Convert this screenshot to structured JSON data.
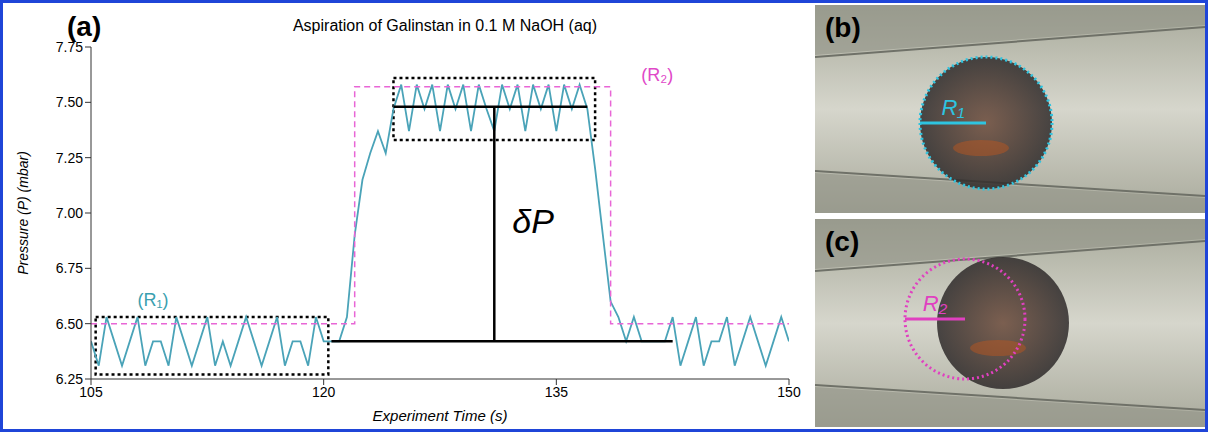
{
  "chart_data": {
    "type": "line",
    "panel_label": "(a)",
    "title": "Aspiration of Galinstan in 0.1 M NaOH (aq)",
    "x_label": "Experiment Time (s)",
    "y_label": "Pressure (P) (mbar)",
    "xlim": [
      105,
      150
    ],
    "xticks": [
      105,
      120,
      135,
      150
    ],
    "ylim": [
      6.25,
      7.75
    ],
    "yticks": [
      6.25,
      {
        "value": 6.5,
        "label": "6.50"
      },
      6.75,
      {
        "value": 7,
        "label": "7.00"
      },
      7.25,
      {
        "value": 7.5,
        "label": "7.50"
      },
      7.75
    ],
    "grid": false,
    "series": [
      {
        "color": "#4aa3b8",
        "line_style": "solid",
        "x": [
          105,
          105.5,
          106,
          106.5,
          107,
          107.5,
          108,
          108.5,
          109,
          109.5,
          110,
          110.5,
          111,
          111.5,
          112,
          112.5,
          113,
          113.5,
          114,
          114.5,
          115,
          115.5,
          116,
          116.5,
          117,
          117.5,
          118,
          118.5,
          119,
          119.5,
          120,
          120.5,
          121,
          121.5,
          122,
          122.5,
          123,
          123.5,
          124,
          124.5,
          125,
          125.5,
          126,
          126.5,
          127,
          127.5,
          128,
          128.5,
          129,
          129.5,
          130,
          130.5,
          131,
          131.5,
          132,
          132.5,
          133,
          133.5,
          134,
          134.5,
          135,
          135.5,
          136,
          136.5,
          137,
          137.5,
          138,
          138.5,
          139,
          139.5,
          140,
          140.5,
          141,
          141.5,
          142,
          142.5,
          143,
          143.5,
          144,
          144.5,
          145,
          145.5,
          146,
          146.5,
          147,
          147.5,
          148,
          148.5,
          149,
          149.5,
          150
        ],
        "values": [
          6.42,
          6.31,
          6.53,
          6.42,
          6.31,
          6.42,
          6.53,
          6.31,
          6.42,
          6.42,
          6.31,
          6.53,
          6.42,
          6.31,
          6.42,
          6.53,
          6.31,
          6.42,
          6.31,
          6.42,
          6.53,
          6.42,
          6.31,
          6.42,
          6.53,
          6.31,
          6.42,
          6.42,
          6.31,
          6.53,
          6.42,
          6.42,
          6.42,
          6.53,
          6.9,
          7.15,
          7.27,
          7.37,
          7.27,
          7.47,
          7.58,
          7.37,
          7.58,
          7.47,
          7.58,
          7.37,
          7.58,
          7.47,
          7.58,
          7.37,
          7.58,
          7.47,
          7.37,
          7.58,
          7.47,
          7.58,
          7.37,
          7.58,
          7.47,
          7.58,
          7.37,
          7.58,
          7.47,
          7.58,
          7.47,
          7.2,
          6.9,
          6.6,
          6.53,
          6.42,
          6.53,
          6.42,
          6.42,
          6.42,
          6.42,
          6.53,
          6.31,
          6.42,
          6.53,
          6.31,
          6.42,
          6.42,
          6.53,
          6.31,
          6.42,
          6.53,
          6.42,
          6.31,
          6.42,
          6.53,
          6.42
        ]
      },
      {
        "color": "#e866d6",
        "line_style": "dashed",
        "x": [
          105,
          122,
          122,
          138.5,
          138.5,
          150
        ],
        "values": [
          6.5,
          6.5,
          7.57,
          7.57,
          6.5,
          6.5
        ]
      }
    ],
    "boxes": [
      {
        "x": [
          105.3,
          120.3
        ],
        "y": [
          6.27,
          6.53
        ]
      },
      {
        "x": [
          124.5,
          137.5
        ],
        "y": [
          7.33,
          7.61
        ]
      }
    ],
    "lines": [
      {
        "x": [
          120.5,
          142.5
        ],
        "y": [
          6.42,
          6.42
        ]
      },
      {
        "x": [
          124.5,
          137
        ],
        "y": [
          7.48,
          7.48
        ]
      },
      {
        "x": [
          131,
          131
        ],
        "y": [
          6.42,
          7.48
        ]
      }
    ],
    "annotations": [
      {
        "text": "(R₁)",
        "x": 109,
        "y": 6.6,
        "color": "#3a9fb0"
      },
      {
        "text": "(R₂)",
        "x": 141.5,
        "y": 7.62,
        "color": "#e048c8"
      },
      {
        "text": "δP",
        "x": 133.5,
        "y": 6.95,
        "color": "#000000"
      }
    ]
  },
  "images": [
    {
      "panel_label": "(b)",
      "label": "R₁",
      "color": "#2ec4e0"
    },
    {
      "panel_label": "(c)",
      "label": "R₂",
      "color": "#e040c0"
    }
  ]
}
